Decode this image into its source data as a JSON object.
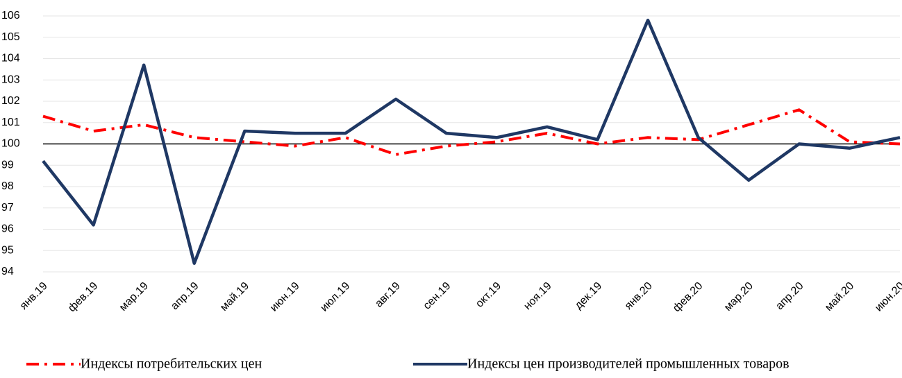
{
  "chart_data": {
    "type": "line",
    "categories": [
      "янв.19",
      "фев.19",
      "мар.19",
      "апр.19",
      "май.19",
      "июн.19",
      "июл.19",
      "авг.19",
      "сен.19",
      "окт.19",
      "ноя.19",
      "дек.19",
      "янв.20",
      "фев.20",
      "мар.20",
      "апр.20",
      "май.20",
      "июн.20"
    ],
    "series": [
      {
        "name": "Индексы потребительских цен",
        "color": "#ff0000",
        "dash": "dashdot",
        "values": [
          101.3,
          100.6,
          100.9,
          100.3,
          100.1,
          99.9,
          100.3,
          99.5,
          99.9,
          100.1,
          100.5,
          100.0,
          100.3,
          100.2,
          100.9,
          101.6,
          100.1,
          100.0
        ]
      },
      {
        "name": "Индексы цен производителей промышленных товаров",
        "color": "#1f3864",
        "dash": "solid",
        "values": [
          99.2,
          96.2,
          103.7,
          94.4,
          100.6,
          100.5,
          100.5,
          102.1,
          100.5,
          100.3,
          100.8,
          100.2,
          105.8,
          100.3,
          98.3,
          100.0,
          99.8,
          100.3
        ]
      }
    ],
    "ylim": [
      94,
      106
    ],
    "yticks": [
      94,
      95,
      96,
      97,
      98,
      99,
      100,
      101,
      102,
      103,
      104,
      105,
      106
    ],
    "x_axis_crosses": 100,
    "grid": true,
    "legend": "bottom"
  }
}
